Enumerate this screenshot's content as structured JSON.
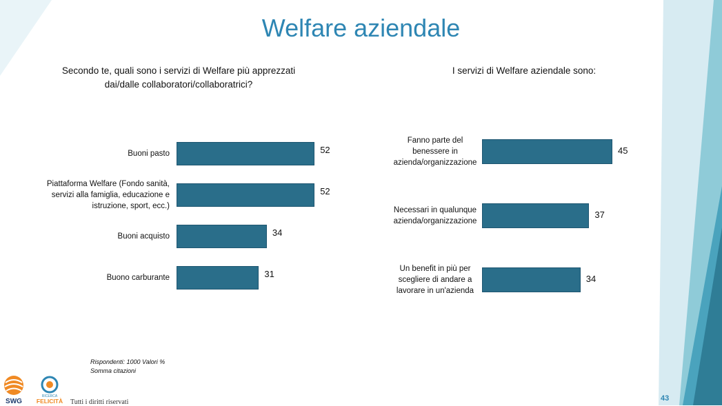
{
  "slide": {
    "title": "Welfare aziendale",
    "page_number": "43",
    "rights_text": "Tutti i diritti riservati",
    "footnote_line1": "Rispondenti: 1000 Valori %",
    "footnote_line2": "Somma citazioni",
    "logos": {
      "swg": "SWG",
      "felicita_top": "RICERCA",
      "felicita_main": "FELICITÀ"
    }
  },
  "colors": {
    "bar": "#2a6e8a",
    "title": "#2e86b3",
    "accent_light": "#d6ecf3",
    "accent_mid": "#7fc4d1",
    "accent_dark": "#3e8aa3"
  },
  "chart_data": [
    {
      "type": "bar",
      "orientation": "horizontal",
      "title": "Secondo te, quali sono i servizi di Welfare più apprezzati dai/dalle collaboratori/collaboratrici?",
      "categories": [
        "Buoni pasto",
        "Piattaforma Welfare (Fondo sanità, servizi alla famiglia, educazione e istruzione, sport, ecc.)",
        "Buoni acquisto",
        "Buono carburante"
      ],
      "values": [
        52,
        52,
        34,
        31
      ],
      "grid": false,
      "data_labels": true
    },
    {
      "type": "bar",
      "orientation": "horizontal",
      "title": "I servizi di Welfare aziendale sono:",
      "categories": [
        "Fanno parte del benessere in azienda/organizzazione",
        "Necessari in qualunque azienda/organizzazione",
        "Un benefit in più per scegliere di andare a lavorare in un'azienda"
      ],
      "values": [
        45,
        37,
        34
      ],
      "grid": false,
      "data_labels": true
    }
  ]
}
